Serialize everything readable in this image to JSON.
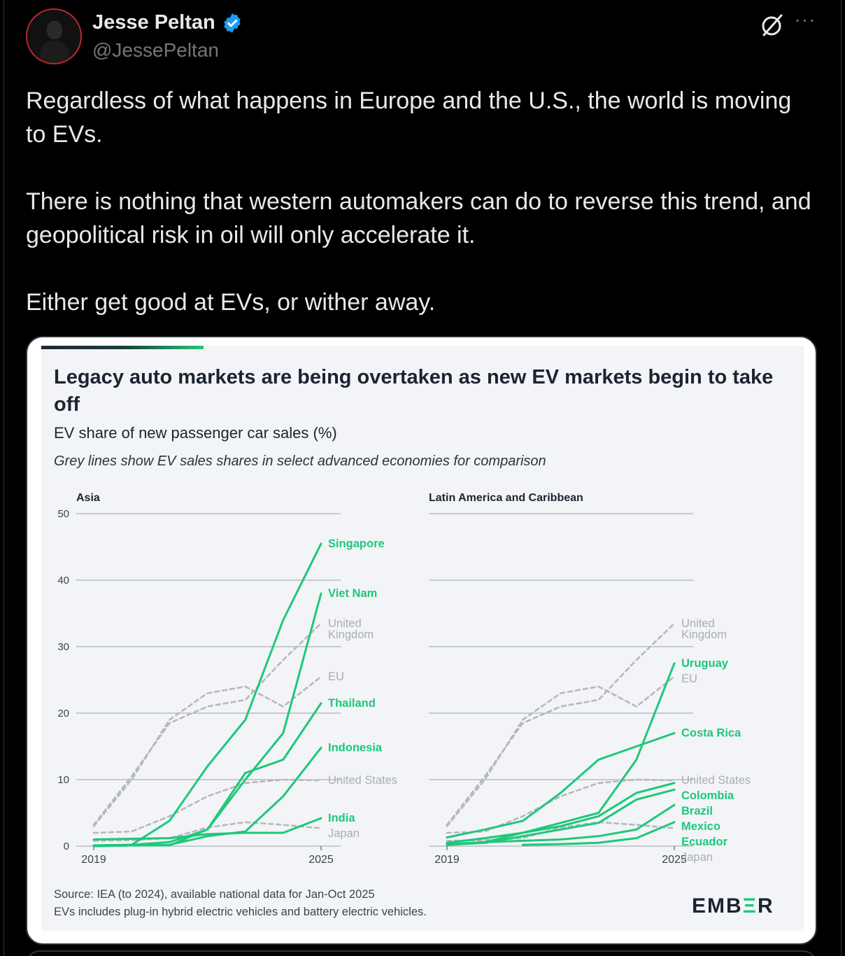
{
  "post": {
    "author": {
      "name": "Jesse Peltan",
      "handle": "@JessePeltan",
      "verified": true
    },
    "text": [
      "Regardless of what happens in Europe and the U.S., the world is moving to EVs.",
      "There is nothing that western automakers can do to reverse this trend, and geopolitical risk in oil will only accelerate it.",
      "Either get good at EVs, or wither away."
    ],
    "icons": {
      "grok": "grok-slash-icon",
      "more": "more-dots-icon",
      "verified": "verified-badge-icon"
    }
  },
  "chart_card": {
    "title": "Legacy auto markets are being overtaken as new EV markets begin to take off",
    "subtitle": "EV share of new passenger car sales (%)",
    "note": "Grey lines show EV sales shares in select advanced economies for comparison",
    "source_line1": "Source: IEA (to 2024), available national data for Jan-Oct 2025",
    "source_line2": "EVs includes plug-in hybrid electric vehicles and battery electric vehicles.",
    "logo": {
      "pre": "EMB",
      "mid": "Ξ",
      "post": "R"
    },
    "colors": {
      "green": "#1ec87a",
      "grey": "#b5b8bd",
      "text": "#1b2430"
    }
  },
  "chart_data": [
    {
      "type": "line",
      "panel_title": "Asia",
      "x": [
        2019,
        2020,
        2021,
        2022,
        2023,
        2024,
        2025
      ],
      "xticks": [
        "2019",
        "2025"
      ],
      "yticks": [
        "0",
        "10",
        "20",
        "30",
        "40",
        "50"
      ],
      "ylim": [
        0,
        50
      ],
      "series": [
        {
          "name": "Singapore",
          "kind": "highlight",
          "values": [
            0.1,
            0.2,
            3.8,
            12,
            19,
            34,
            45.5
          ]
        },
        {
          "name": "Viet Nam",
          "kind": "highlight",
          "values": [
            0.0,
            0.1,
            0.1,
            2.5,
            10,
            17,
            38
          ]
        },
        {
          "name": "Thailand",
          "kind": "highlight",
          "values": [
            0.1,
            0.2,
            0.6,
            2.5,
            11,
            13,
            21.5
          ]
        },
        {
          "name": "Indonesia",
          "kind": "highlight",
          "values": [
            0.0,
            0.1,
            0.2,
            1.5,
            2.2,
            7.5,
            14.8
          ]
        },
        {
          "name": "India",
          "kind": "highlight",
          "values": [
            1.0,
            1.1,
            1.2,
            1.8,
            2.0,
            2.0,
            4.2
          ]
        },
        {
          "name": "United Kingdom",
          "label": "United\nKingdom",
          "kind": "comparison",
          "values": [
            3.2,
            10.5,
            18.5,
            21,
            22,
            28,
            33.5
          ]
        },
        {
          "name": "EU",
          "kind": "comparison",
          "values": [
            3,
            10,
            19,
            23,
            24,
            21,
            25.5
          ]
        },
        {
          "name": "United States",
          "kind": "comparison",
          "values": [
            2.0,
            2.2,
            4.5,
            7.5,
            9.5,
            10,
            9.9
          ]
        },
        {
          "name": "Japan",
          "kind": "comparison",
          "values": [
            0.8,
            0.9,
            1.2,
            2.8,
            3.6,
            3.2,
            2.7
          ]
        }
      ]
    },
    {
      "type": "line",
      "panel_title": "Latin America and Caribbean",
      "x": [
        2019,
        2020,
        2021,
        2022,
        2023,
        2024,
        2025
      ],
      "xticks": [
        "2019",
        "2025"
      ],
      "yticks": [
        "0",
        "10",
        "20",
        "30",
        "40",
        "50"
      ],
      "ylim": [
        0,
        50
      ],
      "series": [
        {
          "name": "Uruguay",
          "kind": "highlight",
          "values": [
            0.5,
            1.2,
            2.0,
            3.5,
            5.0,
            13,
            27.5
          ]
        },
        {
          "name": "Costa Rica",
          "kind": "highlight",
          "values": [
            1.3,
            2.5,
            3.8,
            8,
            13,
            15,
            17
          ]
        },
        {
          "name": "Colombia",
          "kind": "highlight",
          "values": [
            0.2,
            0.6,
            2.0,
            3.0,
            4.5,
            8,
            9.5
          ]
        },
        {
          "name": "Brazil",
          "kind": "highlight",
          "values": [
            0.2,
            0.5,
            1.5,
            2.5,
            3.5,
            7,
            8.5
          ]
        },
        {
          "name": "Mexico",
          "kind": "highlight",
          "values": [
            0.3,
            0.6,
            0.8,
            1.0,
            1.5,
            2.5,
            6.2
          ]
        },
        {
          "name": "Ecuador",
          "kind": "highlight",
          "values": [
            null,
            null,
            0.2,
            0.3,
            0.5,
            1.2,
            3.6
          ]
        },
        {
          "name": "United Kingdom",
          "label": "United\nKingdom",
          "kind": "comparison",
          "values": [
            3.2,
            10.5,
            18.5,
            21,
            22,
            28,
            33.5
          ]
        },
        {
          "name": "EU",
          "kind": "comparison",
          "values": [
            3,
            10,
            19,
            23,
            24,
            21,
            25.5
          ]
        },
        {
          "name": "United States",
          "kind": "comparison",
          "values": [
            2.0,
            2.2,
            4.5,
            7.5,
            9.5,
            10,
            9.9
          ]
        },
        {
          "name": "Japan",
          "kind": "comparison",
          "values": [
            0.8,
            0.9,
            1.2,
            2.8,
            3.6,
            3.2,
            2.7
          ]
        }
      ]
    }
  ]
}
